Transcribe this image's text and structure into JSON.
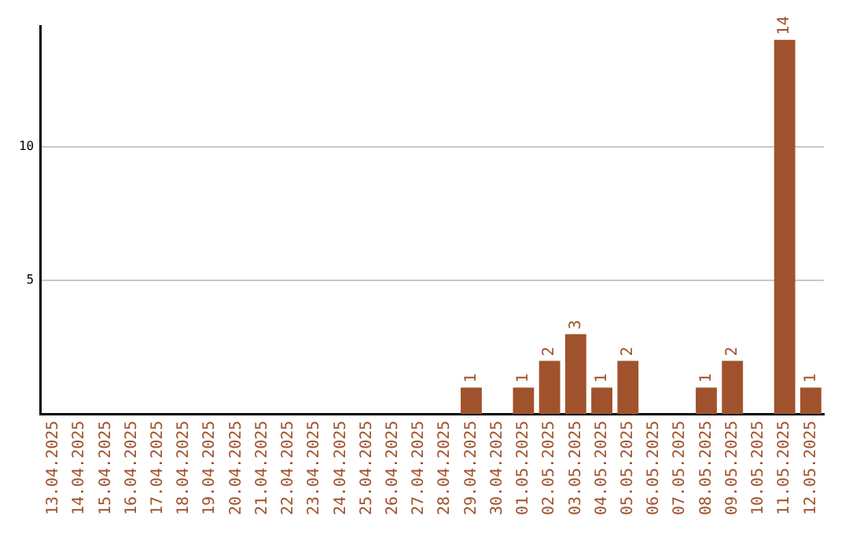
{
  "chart_data": {
    "type": "bar",
    "categories": [
      "13.04.2025",
      "14.04.2025",
      "15.04.2025",
      "16.04.2025",
      "17.04.2025",
      "18.04.2025",
      "19.04.2025",
      "20.04.2025",
      "21.04.2025",
      "22.04.2025",
      "23.04.2025",
      "24.04.2025",
      "25.04.2025",
      "26.04.2025",
      "27.04.2025",
      "28.04.2025",
      "29.04.2025",
      "30.04.2025",
      "01.05.2025",
      "02.05.2025",
      "03.05.2025",
      "04.05.2025",
      "05.05.2025",
      "06.05.2025",
      "07.05.2025",
      "08.05.2025",
      "09.05.2025",
      "10.05.2025",
      "11.05.2025",
      "12.05.2025"
    ],
    "values": [
      0,
      0,
      0,
      0,
      0,
      0,
      0,
      0,
      0,
      0,
      0,
      0,
      0,
      0,
      0,
      0,
      1,
      0,
      1,
      2,
      3,
      1,
      2,
      0,
      0,
      1,
      2,
      0,
      14,
      1
    ],
    "value_labels": [
      null,
      null,
      null,
      null,
      null,
      null,
      null,
      null,
      null,
      null,
      null,
      null,
      null,
      null,
      null,
      null,
      "1",
      null,
      "1",
      "2",
      "3",
      "1",
      "2",
      null,
      null,
      "1",
      "2",
      null,
      "14",
      "1"
    ],
    "color": "#a0522d",
    "ylim": [
      0,
      14.5
    ],
    "yticks": [
      5,
      10
    ],
    "grid": "y",
    "legend": false
  }
}
